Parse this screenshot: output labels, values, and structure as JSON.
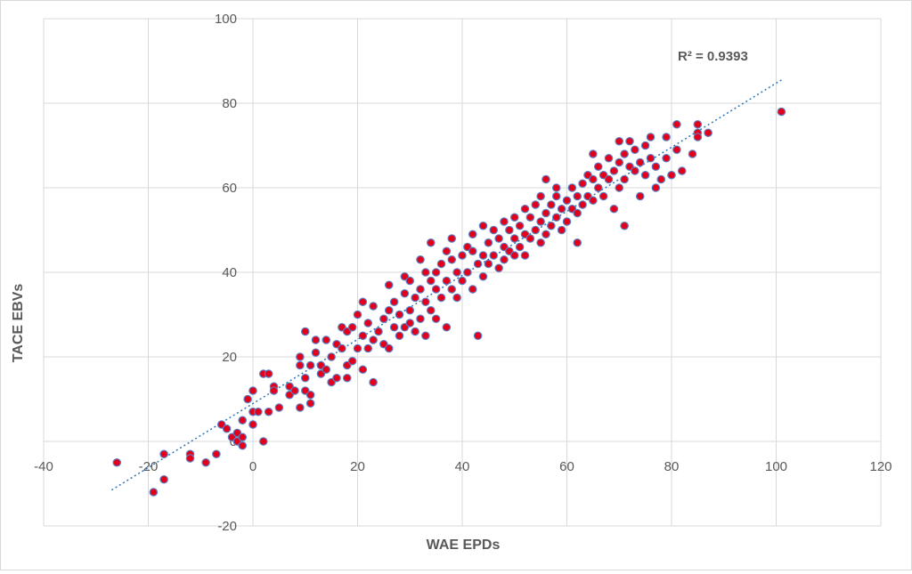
{
  "chart_data": {
    "type": "scatter",
    "title": "",
    "xlabel": "WAE EPDs",
    "ylabel": "TACE EBVs",
    "xlim": [
      -40,
      120
    ],
    "ylim": [
      -20,
      100
    ],
    "x_ticks": [
      -40,
      -20,
      0,
      20,
      40,
      60,
      80,
      100,
      120
    ],
    "y_ticks": [
      -20,
      0,
      20,
      40,
      60,
      80,
      100
    ],
    "x_tick_labels": [
      "-40",
      "-20",
      "0",
      "20",
      "40",
      "60",
      "80",
      "100",
      "120"
    ],
    "y_tick_labels": [
      "-20",
      "0",
      "20",
      "40",
      "60",
      "80",
      "100"
    ],
    "grid": true,
    "legend": "none",
    "marker_color": "#e3001b",
    "marker_edge_color": "#5b7fc4",
    "trendline": {
      "type": "linear",
      "style": "dotted",
      "color": "#2e75b6",
      "x_range": [
        -27,
        101
      ],
      "y_range": [
        -11.5,
        85.5
      ]
    },
    "annotation": "R² = 0.9393",
    "series": [
      {
        "points": [
          [
            -26,
            -5
          ],
          [
            -19,
            -12
          ],
          [
            -17,
            -9
          ],
          [
            -17,
            -3
          ],
          [
            -12,
            -3
          ],
          [
            -12,
            -4
          ],
          [
            -9,
            -5
          ],
          [
            -7,
            -3
          ],
          [
            -6,
            4
          ],
          [
            -5,
            3
          ],
          [
            -4,
            1
          ],
          [
            -3,
            2
          ],
          [
            -3,
            0
          ],
          [
            -2,
            1
          ],
          [
            -2,
            -1
          ],
          [
            -2,
            5
          ],
          [
            -1,
            10
          ],
          [
            0,
            7
          ],
          [
            0,
            4
          ],
          [
            0,
            12
          ],
          [
            1,
            7
          ],
          [
            2,
            0
          ],
          [
            2,
            16
          ],
          [
            3,
            16
          ],
          [
            3,
            7
          ],
          [
            4,
            13
          ],
          [
            4,
            12
          ],
          [
            5,
            8
          ],
          [
            7,
            11
          ],
          [
            7,
            13
          ],
          [
            8,
            12
          ],
          [
            9,
            8
          ],
          [
            9,
            18
          ],
          [
            9,
            20
          ],
          [
            10,
            26
          ],
          [
            10,
            15
          ],
          [
            10,
            12
          ],
          [
            11,
            9
          ],
          [
            11,
            11
          ],
          [
            11,
            18
          ],
          [
            12,
            21
          ],
          [
            12,
            24
          ],
          [
            13,
            16
          ],
          [
            13,
            18
          ],
          [
            14,
            24
          ],
          [
            14,
            17
          ],
          [
            15,
            20
          ],
          [
            15,
            14
          ],
          [
            16,
            23
          ],
          [
            16,
            15
          ],
          [
            17,
            22
          ],
          [
            17,
            27
          ],
          [
            18,
            26
          ],
          [
            18,
            18
          ],
          [
            18,
            15
          ],
          [
            19,
            27
          ],
          [
            19,
            19
          ],
          [
            20,
            22
          ],
          [
            20,
            30
          ],
          [
            21,
            17
          ],
          [
            21,
            25
          ],
          [
            21,
            33
          ],
          [
            22,
            28
          ],
          [
            22,
            22
          ],
          [
            23,
            32
          ],
          [
            23,
            24
          ],
          [
            23,
            14
          ],
          [
            24,
            26
          ],
          [
            25,
            29
          ],
          [
            25,
            23
          ],
          [
            26,
            31
          ],
          [
            26,
            22
          ],
          [
            26,
            37
          ],
          [
            27,
            27
          ],
          [
            27,
            33
          ],
          [
            28,
            30
          ],
          [
            28,
            25
          ],
          [
            29,
            35
          ],
          [
            29,
            27
          ],
          [
            29,
            39
          ],
          [
            30,
            31
          ],
          [
            30,
            38
          ],
          [
            30,
            28
          ],
          [
            31,
            34
          ],
          [
            31,
            26
          ],
          [
            32,
            36
          ],
          [
            32,
            29
          ],
          [
            32,
            43
          ],
          [
            33,
            33
          ],
          [
            33,
            40
          ],
          [
            33,
            25
          ],
          [
            34,
            38
          ],
          [
            34,
            47
          ],
          [
            34,
            31
          ],
          [
            35,
            40
          ],
          [
            35,
            36
          ],
          [
            35,
            29
          ],
          [
            36,
            42
          ],
          [
            36,
            34
          ],
          [
            37,
            38
          ],
          [
            37,
            27
          ],
          [
            37,
            45
          ],
          [
            38,
            36
          ],
          [
            38,
            43
          ],
          [
            38,
            48
          ],
          [
            39,
            40
          ],
          [
            39,
            34
          ],
          [
            40,
            44
          ],
          [
            40,
            38
          ],
          [
            41,
            46
          ],
          [
            41,
            40
          ],
          [
            42,
            45
          ],
          [
            42,
            36
          ],
          [
            42,
            49
          ],
          [
            43,
            42
          ],
          [
            43,
            25
          ],
          [
            44,
            51
          ],
          [
            44,
            44
          ],
          [
            44,
            39
          ],
          [
            45,
            47
          ],
          [
            45,
            42
          ],
          [
            46,
            50
          ],
          [
            46,
            44
          ],
          [
            47,
            48
          ],
          [
            47,
            41
          ],
          [
            48,
            52
          ],
          [
            48,
            46
          ],
          [
            48,
            43
          ],
          [
            49,
            50
          ],
          [
            49,
            45
          ],
          [
            50,
            53
          ],
          [
            50,
            48
          ],
          [
            50,
            44
          ],
          [
            51,
            51
          ],
          [
            51,
            46
          ],
          [
            52,
            55
          ],
          [
            52,
            49
          ],
          [
            52,
            44
          ],
          [
            53,
            53
          ],
          [
            53,
            48
          ],
          [
            54,
            56
          ],
          [
            54,
            50
          ],
          [
            55,
            58
          ],
          [
            55,
            52
          ],
          [
            55,
            47
          ],
          [
            56,
            62
          ],
          [
            56,
            54
          ],
          [
            56,
            49
          ],
          [
            57,
            56
          ],
          [
            57,
            51
          ],
          [
            58,
            58
          ],
          [
            58,
            53
          ],
          [
            58,
            60
          ],
          [
            59,
            55
          ],
          [
            59,
            50
          ],
          [
            60,
            57
          ],
          [
            60,
            52
          ],
          [
            61,
            60
          ],
          [
            61,
            55
          ],
          [
            62,
            58
          ],
          [
            62,
            54
          ],
          [
            62,
            47
          ],
          [
            63,
            61
          ],
          [
            63,
            56
          ],
          [
            64,
            63
          ],
          [
            64,
            58
          ],
          [
            65,
            62
          ],
          [
            65,
            57
          ],
          [
            65,
            68
          ],
          [
            66,
            60
          ],
          [
            66,
            65
          ],
          [
            67,
            63
          ],
          [
            67,
            58
          ],
          [
            68,
            67
          ],
          [
            68,
            62
          ],
          [
            69,
            64
          ],
          [
            69,
            55
          ],
          [
            70,
            66
          ],
          [
            70,
            60
          ],
          [
            70,
            71
          ],
          [
            71,
            68
          ],
          [
            71,
            62
          ],
          [
            71,
            51
          ],
          [
            72,
            65
          ],
          [
            72,
            71
          ],
          [
            73,
            69
          ],
          [
            73,
            64
          ],
          [
            74,
            66
          ],
          [
            74,
            58
          ],
          [
            75,
            70
          ],
          [
            75,
            63
          ],
          [
            76,
            72
          ],
          [
            76,
            67
          ],
          [
            77,
            65
          ],
          [
            77,
            60
          ],
          [
            78,
            62
          ],
          [
            79,
            72
          ],
          [
            79,
            67
          ],
          [
            80,
            63
          ],
          [
            81,
            75
          ],
          [
            81,
            69
          ],
          [
            82,
            64
          ],
          [
            84,
            68
          ],
          [
            85,
            75
          ],
          [
            85,
            73
          ],
          [
            85,
            72
          ],
          [
            87,
            73
          ],
          [
            101,
            78
          ]
        ]
      }
    ]
  }
}
